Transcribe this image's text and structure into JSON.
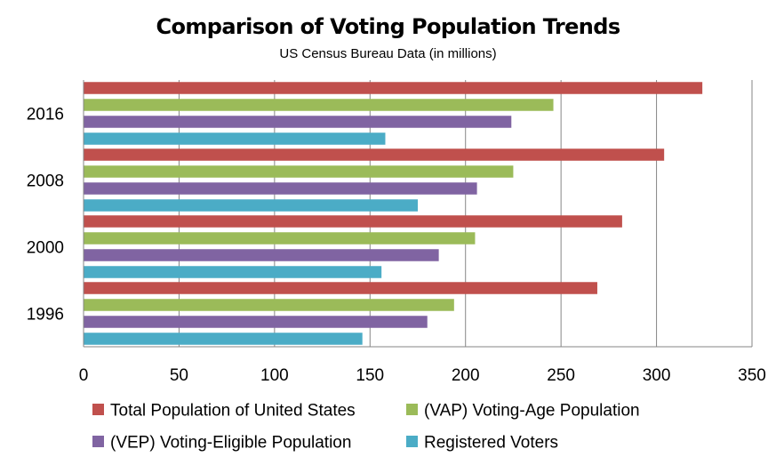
{
  "chart_data": {
    "type": "bar",
    "orientation": "horizontal",
    "title": "Comparison of Voting Population Trends",
    "subtitle": "US Census Bureau Data (in millions)",
    "categories": [
      "1996",
      "2000",
      "2008",
      "2016"
    ],
    "series": [
      {
        "name": "Total Population of United States",
        "color": "#c0504d",
        "values": [
          269,
          282,
          304,
          324
        ]
      },
      {
        "name": "(VAP) Voting-Age Population",
        "color": "#9bbb59",
        "values": [
          194,
          205,
          225,
          246
        ]
      },
      {
        "name": "(VEP) Voting-Eligible Population",
        "color": "#8064a2",
        "values": [
          180,
          186,
          206,
          224
        ]
      },
      {
        "name": "Registered Voters",
        "color": "#4bacc6",
        "values": [
          146,
          156,
          175,
          158
        ]
      }
    ],
    "xlim": [
      0,
      350
    ],
    "x_ticks": [
      "0",
      "50",
      "100",
      "150",
      "200",
      "250",
      "300",
      "350"
    ],
    "x_tick_values": [
      0,
      50,
      100,
      150,
      200,
      250,
      300,
      350
    ],
    "grid": "vertical",
    "legend_position": "bottom"
  }
}
